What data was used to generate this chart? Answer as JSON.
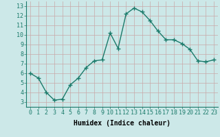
{
  "x": [
    0,
    1,
    2,
    3,
    4,
    5,
    6,
    7,
    8,
    9,
    10,
    11,
    12,
    13,
    14,
    15,
    16,
    17,
    18,
    19,
    20,
    21,
    22,
    23
  ],
  "y": [
    6.0,
    5.5,
    4.0,
    3.2,
    3.3,
    4.8,
    5.5,
    6.6,
    7.3,
    7.4,
    10.2,
    8.6,
    12.2,
    12.8,
    12.4,
    11.5,
    10.4,
    9.5,
    9.5,
    9.1,
    8.5,
    7.3,
    7.2,
    7.4
  ],
  "line_color": "#1a7a6a",
  "marker": "+",
  "marker_size": 4,
  "bg_color": "#cce8e8",
  "grid_color": "#b0d0d0",
  "xlabel": "Humidex (Indice chaleur)",
  "xlim": [
    -0.5,
    23.5
  ],
  "ylim": [
    2.5,
    13.5
  ],
  "yticks": [
    3,
    4,
    5,
    6,
    7,
    8,
    9,
    10,
    11,
    12,
    13
  ],
  "xticks": [
    0,
    1,
    2,
    3,
    4,
    5,
    6,
    7,
    8,
    9,
    10,
    11,
    12,
    13,
    14,
    15,
    16,
    17,
    18,
    19,
    20,
    21,
    22,
    23
  ],
  "xlabel_fontsize": 7,
  "tick_fontsize": 6,
  "line_width": 1.0
}
